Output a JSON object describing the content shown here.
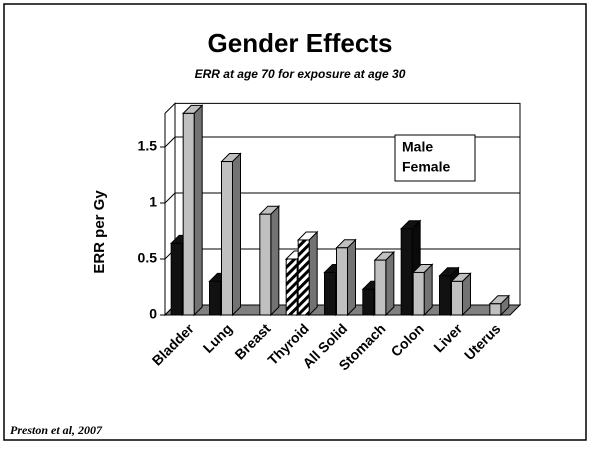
{
  "chart_data": {
    "type": "bar3d",
    "title": "Gender Effects",
    "subtitle": "ERR at age 70 for exposure at age 30",
    "y_label": "ERR per Gy",
    "source": "Preston et al, 2007",
    "categories": [
      "Bladder",
      "Lung",
      "Breast",
      "Thyroid",
      "All Solid",
      "Stomach",
      "Colon",
      "Liver",
      "Uterus"
    ],
    "series": [
      {
        "name": "Male",
        "color": "#111111",
        "values": [
          0.64,
          0.3,
          null,
          0.5,
          0.38,
          0.23,
          0.77,
          0.35,
          null
        ]
      },
      {
        "name": "Female",
        "color": "#c0c0c0",
        "values": [
          1.8,
          1.37,
          0.9,
          0.67,
          0.6,
          0.49,
          0.38,
          0.3,
          0.1
        ]
      }
    ],
    "hatched_categories": [
      "Thyroid"
    ],
    "ylim": [
      0,
      1.8
    ],
    "yticks": [
      0,
      0.5,
      1,
      1.5
    ],
    "grid": true
  }
}
